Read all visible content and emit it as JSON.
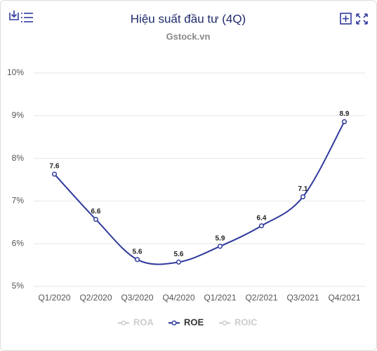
{
  "chart_data": {
    "type": "line",
    "title": "Hiệu suất đầu tư (4Q)",
    "subtitle": "Gstock.vn",
    "categories": [
      "Q1/2020",
      "Q2/2020",
      "Q3/2020",
      "Q4/2020",
      "Q1/2021",
      "Q2/2021",
      "Q3/2021",
      "Q4/2021"
    ],
    "series": [
      {
        "name": "ROA",
        "color": "#cccccc",
        "hidden": true,
        "values": [
          null,
          null,
          null,
          null,
          null,
          null,
          null,
          null
        ]
      },
      {
        "name": "ROE",
        "color": "#2f3a9c",
        "hidden": false,
        "values": [
          7.63,
          6.57,
          5.63,
          5.57,
          5.94,
          6.42,
          7.1,
          8.86
        ],
        "value_labels": [
          "7.6",
          "6.6",
          "5.6",
          "5.6",
          "5.9",
          "6.4",
          "7.1",
          "8.9"
        ]
      },
      {
        "name": "ROIC",
        "color": "#cccccc",
        "hidden": true,
        "values": [
          null,
          null,
          null,
          null,
          null,
          null,
          null,
          null
        ]
      }
    ],
    "ylim": [
      5,
      10
    ],
    "yticks": [
      {
        "value": 5,
        "label": "5%"
      },
      {
        "value": 6,
        "label": "6%"
      },
      {
        "value": 7,
        "label": "7%"
      },
      {
        "value": 8,
        "label": "8%"
      },
      {
        "value": 9,
        "label": "9%"
      },
      {
        "value": 10,
        "label": "10%"
      }
    ],
    "grid": true
  }
}
